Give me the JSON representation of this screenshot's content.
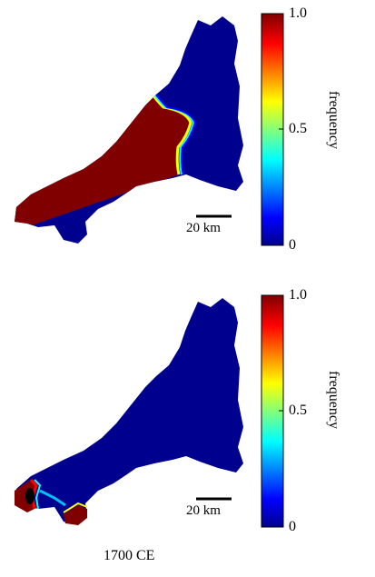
{
  "panels": [
    {
      "id": "top",
      "scale_bar": "20 km",
      "colorbar": {
        "label": "frequency",
        "ticks": [
          "1.0",
          "0.5",
          "0"
        ]
      }
    },
    {
      "id": "bottom",
      "scale_bar": "20 km",
      "colorbar": {
        "label": "frequency",
        "ticks": [
          "1.0",
          "0.5",
          "0"
        ]
      }
    }
  ],
  "caption": "1700 CE",
  "colors": {
    "low": "#00008f",
    "high": "#800000",
    "colormap": [
      "#00008f",
      "#0000ff",
      "#00ffff",
      "#ffff00",
      "#ff0000",
      "#800000"
    ]
  }
}
